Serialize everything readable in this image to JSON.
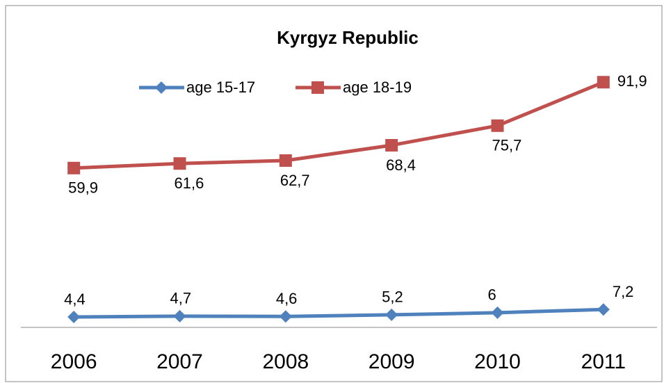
{
  "chart_data": {
    "type": "line",
    "title": "Kyrgyz Republic",
    "categories": [
      "2006",
      "2007",
      "2008",
      "2009",
      "2010",
      "2011"
    ],
    "series": [
      {
        "name": "age 15-17",
        "color": "#4f81bd",
        "marker": "diamond",
        "values": [
          4.4,
          4.7,
          4.6,
          5.2,
          6,
          7.2
        ],
        "value_labels": [
          "4,4",
          "4,7",
          "4,6",
          "5,2",
          "6",
          "7,2"
        ]
      },
      {
        "name": "age 18-19",
        "color": "#c0504d",
        "marker": "square",
        "values": [
          59.9,
          61.6,
          62.7,
          68.4,
          75.7,
          91.9
        ],
        "value_labels": [
          "59,9",
          "61,6",
          "62,7",
          "68,4",
          "75,7",
          "91,9"
        ]
      }
    ],
    "ylim": [
      0,
      100
    ],
    "legend": "top"
  }
}
